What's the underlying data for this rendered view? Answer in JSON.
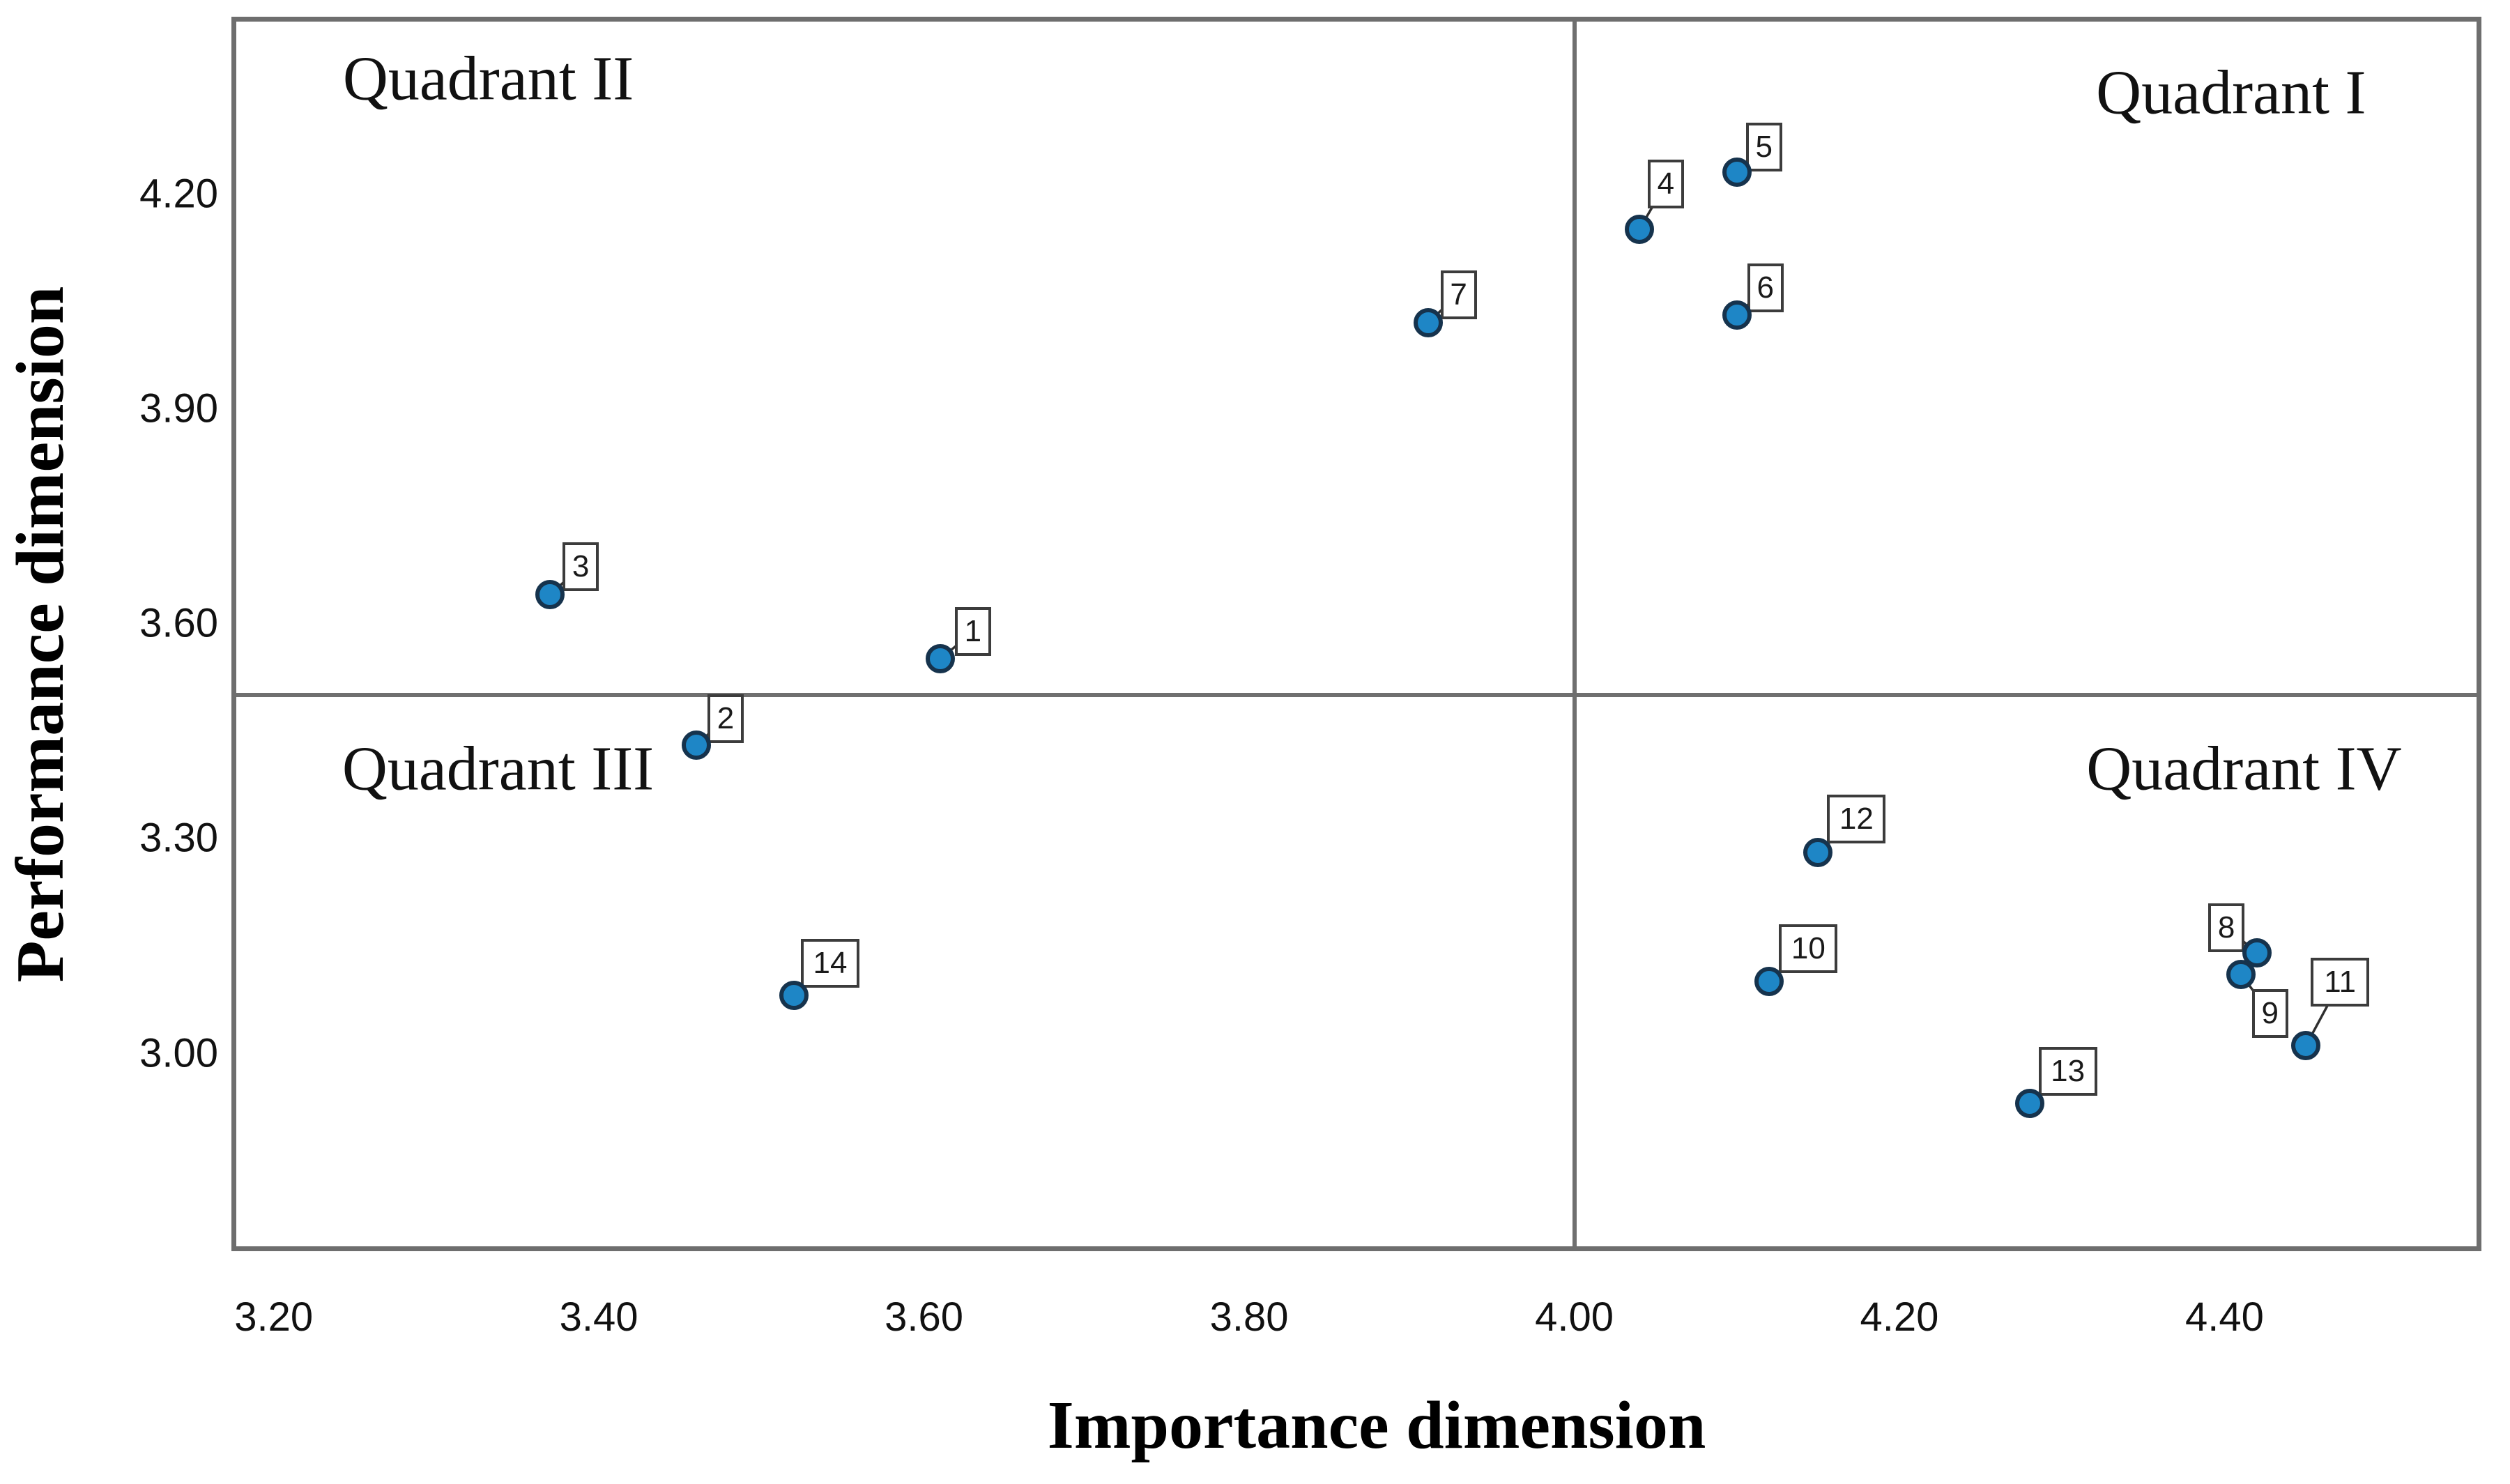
{
  "chart_data": {
    "type": "scatter",
    "title": "",
    "xlabel": "Importance dimension",
    "ylabel": "Performance dimension",
    "xlim": [
      3.177,
      4.555
    ],
    "ylim": [
      2.73,
      4.44
    ],
    "grid": false,
    "legend": "none",
    "x_ticks": [
      {
        "v": 3.2,
        "label": "3.20"
      },
      {
        "v": 3.4,
        "label": "3.40"
      },
      {
        "v": 3.6,
        "label": "3.60"
      },
      {
        "v": 3.8,
        "label": "3.80"
      },
      {
        "v": 4.0,
        "label": "4.00"
      },
      {
        "v": 4.2,
        "label": "4.20"
      },
      {
        "v": 4.4,
        "label": "4.40"
      }
    ],
    "y_ticks": [
      {
        "v": 4.2,
        "label": "4.20"
      },
      {
        "v": 3.9,
        "label": "3.90"
      },
      {
        "v": 3.6,
        "label": "3.60"
      },
      {
        "v": 3.3,
        "label": "3.30"
      },
      {
        "v": 3.0,
        "label": "3.00"
      }
    ],
    "crosshair": {
      "x": 4.0,
      "y": 3.5
    },
    "quadrant_labels": [
      {
        "text": "Quadrant II",
        "x": 3.332,
        "y": 4.36
      },
      {
        "text": "Quadrant I",
        "x": 4.404,
        "y": 4.341
      },
      {
        "text": "Quadrant III",
        "x": 3.338,
        "y": 3.397
      },
      {
        "text": "Quadrant IV",
        "x": 4.412,
        "y": 3.397
      }
    ],
    "points": [
      {
        "id": "1",
        "x": 3.61,
        "y": 3.55,
        "lx": 21,
        "ly": -4
      },
      {
        "id": "2",
        "x": 3.46,
        "y": 3.43,
        "lx": 16,
        "ly": -3
      },
      {
        "id": "3",
        "x": 3.37,
        "y": 3.64,
        "lx": 18,
        "ly": -5
      },
      {
        "id": "4",
        "x": 4.04,
        "y": 4.15,
        "lx": 12,
        "ly": -30
      },
      {
        "id": "5",
        "x": 4.1,
        "y": 4.23,
        "lx": 13,
        "ly": -1
      },
      {
        "id": "6",
        "x": 4.1,
        "y": 4.03,
        "lx": 15,
        "ly": -4
      },
      {
        "id": "7",
        "x": 3.91,
        "y": 4.02,
        "lx": 18,
        "ly": -5
      },
      {
        "id": "8",
        "x": 4.42,
        "y": 3.14,
        "lx": -70,
        "ly": -1
      },
      {
        "id": "9",
        "x": 4.41,
        "y": 3.11,
        "lx": 16,
        "ly": 91
      },
      {
        "id": "10",
        "x": 4.12,
        "y": 3.1,
        "lx": 14,
        "ly": -12
      },
      {
        "id": "11",
        "x": 4.45,
        "y": 3.01,
        "lx": 7,
        "ly": -56
      },
      {
        "id": "12",
        "x": 4.15,
        "y": 3.28,
        "lx": 13,
        "ly": -13
      },
      {
        "id": "13",
        "x": 4.28,
        "y": 2.93,
        "lx": 13,
        "ly": -11
      },
      {
        "id": "14",
        "x": 3.52,
        "y": 3.08,
        "lx": 10,
        "ly": -11
      }
    ],
    "style": {
      "marker_fill": "#1e86c6",
      "marker_stroke": "#16334d",
      "label_box_bg": "#ffffff",
      "label_box_border": "#3c3c3c",
      "leader_color": "#2f2f2f",
      "axis_line_color": "#6e6e6e",
      "crosshair_color": "#6f6f6f",
      "text_color": "#111111"
    }
  }
}
